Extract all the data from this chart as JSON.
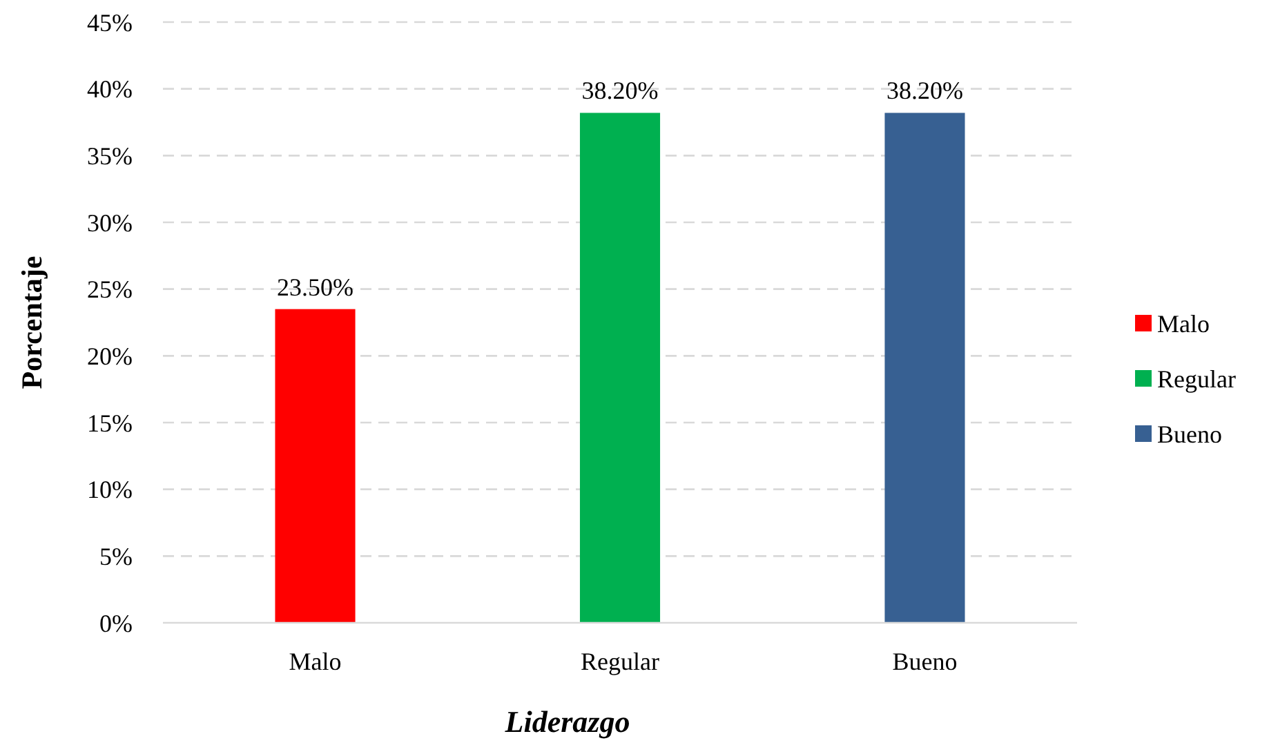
{
  "chart_data": {
    "type": "bar",
    "xlabel": "Liderazgo",
    "ylabel": "Porcentaje",
    "categories": [
      "Malo",
      "Regular",
      "Bueno"
    ],
    "stacked": true,
    "series": [
      {
        "name": "Malo",
        "color": "#ff0000",
        "values": [
          23.5,
          null,
          null
        ],
        "value_labels": [
          "23.50%",
          null,
          null
        ]
      },
      {
        "name": "Regular",
        "color": "#00b050",
        "values": [
          null,
          38.2,
          null
        ],
        "value_labels": [
          null,
          "38.20%",
          null
        ]
      },
      {
        "name": "Bueno",
        "color": "#376092",
        "values": [
          null,
          null,
          38.2
        ],
        "value_labels": [
          null,
          null,
          "38.20%"
        ]
      }
    ],
    "ylim": [
      0,
      45
    ],
    "yticks": [
      {
        "value": 0,
        "label": "0%"
      },
      {
        "value": 5,
        "label": "5%"
      },
      {
        "value": 10,
        "label": "10%"
      },
      {
        "value": 15,
        "label": "15%"
      },
      {
        "value": 20,
        "label": "20%"
      },
      {
        "value": 25,
        "label": "25%"
      },
      {
        "value": 30,
        "label": "30%"
      },
      {
        "value": 35,
        "label": "35%"
      },
      {
        "value": 40,
        "label": "40%"
      },
      {
        "value": 45,
        "label": "45%"
      }
    ],
    "grid": "y",
    "legend": "right"
  }
}
